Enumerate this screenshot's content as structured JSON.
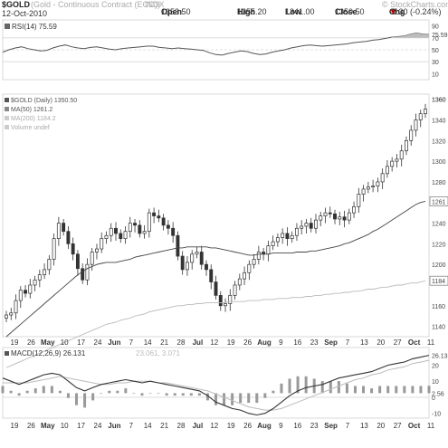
{
  "header": {
    "symbol": "$GOLD",
    "symbol_note": "(Gold - Continuous Contract (EOD))",
    "source": "INDX",
    "copyright": "© StockCharts.com",
    "date": "12-Oct-2010",
    "open_label": "Open",
    "open_value": "1353.50",
    "high_label": "High",
    "high_value": "1355.20",
    "low_label": "Low",
    "low_value": "1341.00",
    "close_label": "Close",
    "close_value": "1350.50",
    "chg_label": "Chg",
    "chg_value": "-3.30 (-0.24%)",
    "chg_arrow": "▼",
    "chg_color": "#c00000"
  },
  "chart_data": [
    {
      "type": "line",
      "panel": "rsi",
      "legend": "RSI(14) 75.59",
      "ylim": [
        0,
        100
      ],
      "y_ticks": [
        "90",
        "75.59",
        "70",
        "50",
        "30",
        "10"
      ],
      "ref_lines": [
        70,
        50,
        30
      ],
      "values": [
        46,
        50,
        53,
        55,
        52,
        50,
        48,
        49,
        53,
        56,
        58,
        55,
        53,
        52,
        54,
        55,
        53,
        51,
        50,
        52,
        53,
        54,
        55,
        56,
        56,
        54,
        53,
        52,
        53,
        52,
        51,
        50,
        49,
        45,
        42,
        41,
        44,
        46,
        48,
        47,
        44,
        42,
        43,
        46,
        48,
        50,
        53,
        55,
        57,
        58,
        57,
        56,
        57,
        58,
        59,
        60,
        62,
        63,
        64,
        66,
        67,
        69,
        71,
        72,
        73,
        76,
        78,
        76,
        75.59
      ],
      "value_color": "#c8c8c8",
      "line_color": "#555555"
    },
    {
      "type": "candlestick",
      "panel": "price",
      "legend": [
        "$GOLD (Daily) 1350.50",
        "MA(50) 1261.2",
        "MA(200) 1184.2",
        "Volume undef"
      ],
      "ylim": [
        1130,
        1365
      ],
      "y_ticks": [
        1140,
        1160,
        1180,
        1200,
        1220,
        1240,
        1260,
        1280,
        1300,
        1320,
        1340,
        1360
      ],
      "y_tick_labels": [
        "1140",
        "1160",
        "1184",
        "1200",
        "1220",
        "1240",
        "1261",
        "1280",
        "1300",
        "1320",
        "1340",
        "1360"
      ],
      "last_price_label": "1350",
      "ma50_label": "1261",
      "ma200_label": "1184",
      "x_labels": [
        "19",
        "26",
        "May",
        "10",
        "17",
        "24",
        "Jun",
        "7",
        "14",
        "21",
        "28",
        "Jul",
        "12",
        "19",
        "26",
        "Aug",
        "9",
        "16",
        "23",
        "Sep",
        "7",
        "13",
        "20",
        "27",
        "Oct",
        "11"
      ],
      "bold_x_labels": [
        "May",
        "Jun",
        "Jul",
        "Aug",
        "Sep",
        "Oct"
      ],
      "close": [
        1151,
        1153,
        1165,
        1175,
        1172,
        1180,
        1185,
        1190,
        1195,
        1205,
        1225,
        1240,
        1232,
        1220,
        1210,
        1196,
        1185,
        1200,
        1212,
        1215,
        1225,
        1228,
        1235,
        1230,
        1225,
        1232,
        1240,
        1238,
        1230,
        1232,
        1250,
        1247,
        1245,
        1238,
        1235,
        1228,
        1208,
        1195,
        1202,
        1210,
        1212,
        1200,
        1195,
        1183,
        1170,
        1160,
        1162,
        1170,
        1180,
        1186,
        1192,
        1200,
        1205,
        1212,
        1210,
        1218,
        1222,
        1226,
        1230,
        1225,
        1228,
        1235,
        1237,
        1240,
        1235,
        1243,
        1247,
        1250,
        1249,
        1244,
        1246,
        1243,
        1250,
        1256,
        1268,
        1273,
        1275,
        1276,
        1280,
        1288,
        1295,
        1300,
        1302,
        1310,
        1320,
        1330,
        1340,
        1346,
        1350.5
      ],
      "ma50": [
        1130,
        1134,
        1138,
        1142,
        1146,
        1150,
        1154,
        1158,
        1162,
        1166,
        1170,
        1174,
        1178,
        1182,
        1186,
        1190,
        1193,
        1196,
        1198,
        1200,
        1201,
        1202,
        1202,
        1202,
        1203,
        1204,
        1205,
        1207,
        1208,
        1209,
        1210,
        1211,
        1212,
        1213,
        1214,
        1215,
        1216,
        1216,
        1217,
        1217,
        1217,
        1217,
        1217,
        1216,
        1216,
        1215,
        1214,
        1213,
        1212,
        1211,
        1210,
        1209,
        1209,
        1210,
        1210,
        1210,
        1211,
        1211,
        1211,
        1211,
        1211,
        1212,
        1212,
        1212,
        1213,
        1213,
        1214,
        1215,
        1216,
        1217,
        1218,
        1220,
        1221,
        1223,
        1225,
        1227,
        1229,
        1232,
        1234,
        1237,
        1240,
        1243,
        1246,
        1249,
        1252,
        1255,
        1258,
        1260,
        1261.2
      ],
      "ma200": [
        1100,
        1102,
        1104,
        1106,
        1108,
        1110,
        1112,
        1114,
        1116,
        1118,
        1120,
        1122,
        1124,
        1126,
        1128,
        1130,
        1132,
        1134,
        1136,
        1138,
        1140,
        1142,
        1143,
        1144,
        1146,
        1147,
        1148,
        1150,
        1151,
        1152,
        1154,
        1155,
        1156,
        1157,
        1158,
        1159,
        1160,
        1160,
        1161,
        1161,
        1162,
        1162,
        1163,
        1163,
        1163,
        1163,
        1163,
        1164,
        1164,
        1164,
        1164,
        1165,
        1165,
        1165,
        1166,
        1166,
        1166,
        1167,
        1167,
        1167,
        1168,
        1168,
        1168,
        1169,
        1169,
        1170,
        1170,
        1171,
        1171,
        1172,
        1172,
        1173,
        1173,
        1174,
        1174,
        1175,
        1176,
        1176,
        1177,
        1178,
        1178,
        1179,
        1180,
        1180,
        1181,
        1182,
        1182,
        1183,
        1184.2
      ],
      "candle_color": "#333333",
      "ma50_color": "#444444",
      "ma200_color": "#bbbbbb"
    },
    {
      "type": "line",
      "panel": "macd",
      "legend": "MACD(12,26,9) 26.131",
      "legend_extra": "23.061, 3.071",
      "ylim": [
        -13,
        31
      ],
      "y_ticks": [
        "26.13",
        "20",
        "10",
        "2.56",
        "0",
        "-10"
      ],
      "macd": [
        12,
        10,
        8,
        10,
        12,
        14,
        15,
        14,
        10,
        6,
        4,
        6,
        8,
        9,
        10,
        11,
        10,
        9,
        10,
        9,
        8,
        7,
        6,
        5,
        4,
        1,
        -3,
        -5,
        -7,
        -8,
        -10,
        -11,
        -10,
        -7,
        -3,
        1,
        4,
        6,
        7,
        8,
        10,
        12,
        13,
        14,
        15,
        16,
        18,
        20,
        21,
        22,
        24,
        25,
        26.131
      ],
      "signal": [
        9,
        9,
        9,
        9,
        10,
        11,
        12,
        13,
        12,
        11,
        10,
        9,
        8,
        8,
        9,
        9,
        10,
        10,
        10,
        9,
        9,
        8,
        7,
        6,
        5,
        4,
        2,
        0,
        -2,
        -4,
        -6,
        -7,
        -8,
        -8,
        -7,
        -5,
        -3,
        -1,
        1,
        3,
        5,
        7,
        9,
        11,
        12,
        14,
        15,
        17,
        18,
        19,
        21,
        22,
        23.061
      ],
      "macd_color": "#333333",
      "signal_color": "#bbbbbb",
      "hist_color": "#999999"
    }
  ]
}
